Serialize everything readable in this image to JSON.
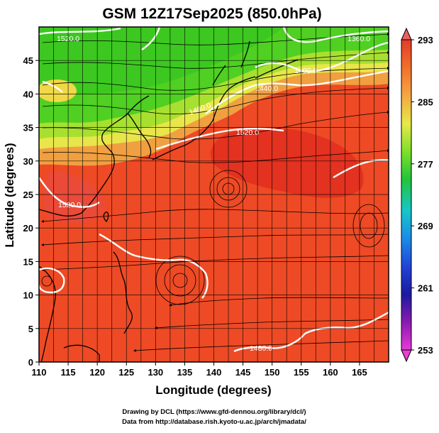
{
  "title": "GSM 12Z17Sep2025 (850.0hPa)",
  "xlabel": "Longitude (degrees)",
  "ylabel": "Latitude  (degrees)",
  "credit_line1": "Drawing by DCL (https://www.gfd-dennou.org/library/dcl/)",
  "credit_line2": "Data from http://database.rish.kyoto-u.ac.jp/arch/jmadata/",
  "x_ticks": [
    "110",
    "115",
    "120",
    "125",
    "130",
    "135",
    "140",
    "145",
    "150",
    "155",
    "160",
    "165"
  ],
  "y_ticks": [
    "0",
    "5",
    "10",
    "15",
    "20",
    "25",
    "30",
    "35",
    "40",
    "45"
  ],
  "colorbar_ticks": [
    "293",
    "285",
    "277",
    "269",
    "261",
    "253"
  ],
  "contour_labels": [
    "1520.0",
    "1480.0",
    "1440.0",
    "1400.0",
    "1360.0",
    "1520.0",
    "1520.0",
    "1480.0"
  ],
  "colors": {
    "warm_core": "#e8361f",
    "warm": "#f2552a",
    "orange": "#f5a24a",
    "yellow": "#e8e64a",
    "green": "#3fd424",
    "contour": "#ffffff",
    "coast": "#000000"
  },
  "map_extent": {
    "lon": [
      110,
      170
    ],
    "lat": [
      0,
      50
    ]
  }
}
